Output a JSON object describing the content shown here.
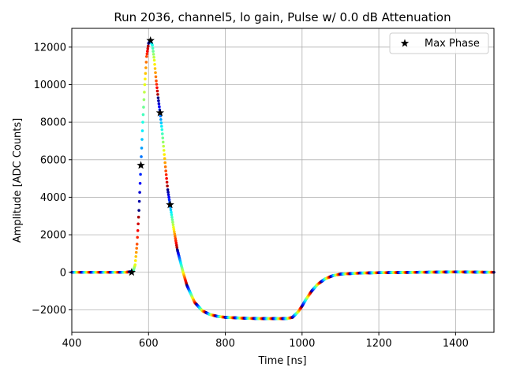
{
  "chart_data": {
    "type": "scatter",
    "title": "Run 2036, channel5, lo gain, Pulse w/ 0.0 dB Attenuation",
    "xlabel": "Time [ns]",
    "ylabel": "Amplitude [ADC Counts]",
    "xlim": [
      400,
      1500
    ],
    "ylim": [
      -3200,
      13000
    ],
    "xticks": [
      400,
      600,
      800,
      1000,
      1200,
      1400
    ],
    "yticks": [
      -2000,
      0,
      2000,
      4000,
      6000,
      8000,
      10000,
      12000
    ],
    "xtick_labels": [
      "400",
      "600",
      "800",
      "1000",
      "1200",
      "1400"
    ],
    "ytick_labels": [
      "−2000",
      "0",
      "2000",
      "4000",
      "6000",
      "8000",
      "10000",
      "12000"
    ],
    "grid": true,
    "legend": {
      "position": "top-right",
      "entries": [
        "Max Phase"
      ]
    },
    "colormap": "jet",
    "pulse_points": [
      [
        400,
        0
      ],
      [
        540,
        0
      ],
      [
        560,
        50
      ],
      [
        565,
        400
      ],
      [
        570,
        1500
      ],
      [
        575,
        3300
      ],
      [
        580,
        5700
      ],
      [
        585,
        8000
      ],
      [
        590,
        10000
      ],
      [
        595,
        11500
      ],
      [
        600,
        12200
      ],
      [
        605,
        12350
      ],
      [
        610,
        12100
      ],
      [
        615,
        11300
      ],
      [
        620,
        10200
      ],
      [
        625,
        9300
      ],
      [
        630,
        8500
      ],
      [
        635,
        7600
      ],
      [
        640,
        6500
      ],
      [
        645,
        5400
      ],
      [
        650,
        4400
      ],
      [
        656,
        3600
      ],
      [
        665,
        2400
      ],
      [
        675,
        1200
      ],
      [
        690,
        0
      ],
      [
        700,
        -700
      ],
      [
        720,
        -1600
      ],
      [
        740,
        -2050
      ],
      [
        760,
        -2250
      ],
      [
        780,
        -2350
      ],
      [
        800,
        -2400
      ],
      [
        850,
        -2450
      ],
      [
        900,
        -2470
      ],
      [
        960,
        -2470
      ],
      [
        975,
        -2400
      ],
      [
        990,
        -2100
      ],
      [
        1000,
        -1800
      ],
      [
        1010,
        -1450
      ],
      [
        1025,
        -1000
      ],
      [
        1040,
        -650
      ],
      [
        1060,
        -350
      ],
      [
        1080,
        -180
      ],
      [
        1100,
        -100
      ],
      [
        1150,
        -40
      ],
      [
        1200,
        -20
      ],
      [
        1300,
        0
      ],
      [
        1400,
        20
      ],
      [
        1500,
        0
      ]
    ],
    "series": [
      {
        "name": "Max Phase",
        "marker": "star",
        "points": [
          [
            556,
            0
          ],
          [
            580,
            5700
          ],
          [
            605,
            12350
          ],
          [
            630,
            8500
          ],
          [
            656,
            3600
          ]
        ]
      }
    ]
  }
}
